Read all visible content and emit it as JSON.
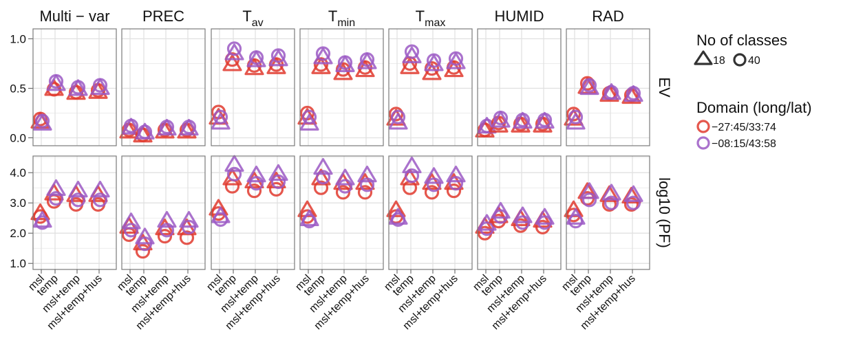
{
  "colors": {
    "series_red": "#e03a2e",
    "series_purple": "#9b59c4",
    "grid": "#e1e1e1",
    "panel_border": "#7a7a7a"
  },
  "legend": {
    "classes_title": "No of classes",
    "classes_items": [
      {
        "label": "18",
        "shape": "triangle"
      },
      {
        "label": "40",
        "shape": "circle"
      }
    ],
    "domain_title": "Domain (long/lat)",
    "domain_items": [
      {
        "label": "−27:45/33:74",
        "color": "#e03a2e"
      },
      {
        "label": "−08:15/43:58",
        "color": "#9b59c4"
      }
    ]
  },
  "chart_data": {
    "type": "scatter",
    "facet_columns": [
      "Multi − var",
      "PREC",
      "T",
      "T",
      "T",
      "HUMID",
      "RAD"
    ],
    "facet_column_subscripts": [
      "",
      "",
      "av",
      "min",
      "max",
      "",
      ""
    ],
    "facet_rows": [
      "EV",
      "log10 (PF)"
    ],
    "x_categories": [
      "msl",
      "temp",
      "msl+temp",
      "msl+temp+hus"
    ],
    "y_axes": {
      "EV": {
        "ylim": [
          -0.08,
          1.1
        ],
        "ticks": [
          0.0,
          0.5,
          1.0
        ],
        "tick_labels": [
          "0.0",
          "0.5",
          "1.0"
        ]
      },
      "log10 (PF)": {
        "ylim": [
          0.8,
          4.55
        ],
        "ticks": [
          1.0,
          2.0,
          3.0,
          4.0
        ],
        "tick_labels": [
          "1.0",
          "2.0",
          "3.0",
          "4.0"
        ]
      }
    },
    "series": [
      {
        "domain": "−27:45/33:74",
        "classes": "18",
        "shape": "triangle"
      },
      {
        "domain": "−27:45/33:74",
        "classes": "40",
        "shape": "circle"
      },
      {
        "domain": "−08:15/43:58",
        "classes": "18",
        "shape": "triangle"
      },
      {
        "domain": "−08:15/43:58",
        "classes": "40",
        "shape": "circle"
      }
    ],
    "values": {
      "EV": [
        [
          [
            0.16,
            0.19,
            0.14,
            0.17
          ],
          [
            0.49,
            0.49,
            0.54,
            0.57
          ],
          [
            0.45,
            0.46,
            0.49,
            0.51
          ],
          [
            0.46,
            0.48,
            0.5,
            0.53
          ]
        ],
        [
          [
            0.06,
            0.08,
            0.1,
            0.12
          ],
          [
            0.02,
            0.03,
            0.05,
            0.06
          ],
          [
            0.06,
            0.08,
            0.09,
            0.11
          ],
          [
            0.06,
            0.08,
            0.09,
            0.11
          ]
        ],
        [
          [
            0.2,
            0.26,
            0.15,
            0.21
          ],
          [
            0.74,
            0.79,
            0.85,
            0.9
          ],
          [
            0.7,
            0.73,
            0.78,
            0.81
          ],
          [
            0.71,
            0.74,
            0.79,
            0.83
          ]
        ],
        [
          [
            0.2,
            0.25,
            0.14,
            0.21
          ],
          [
            0.71,
            0.74,
            0.81,
            0.85
          ],
          [
            0.65,
            0.69,
            0.73,
            0.76
          ],
          [
            0.68,
            0.71,
            0.76,
            0.79
          ]
        ],
        [
          [
            0.19,
            0.24,
            0.15,
            0.21
          ],
          [
            0.71,
            0.75,
            0.82,
            0.87
          ],
          [
            0.65,
            0.7,
            0.74,
            0.78
          ],
          [
            0.68,
            0.71,
            0.76,
            0.8
          ]
        ],
        [
          [
            0.07,
            0.08,
            0.11,
            0.12
          ],
          [
            0.12,
            0.15,
            0.17,
            0.2
          ],
          [
            0.12,
            0.14,
            0.16,
            0.18
          ],
          [
            0.12,
            0.14,
            0.16,
            0.18
          ]
        ],
        [
          [
            0.19,
            0.24,
            0.15,
            0.21
          ],
          [
            0.51,
            0.55,
            0.5,
            0.53
          ],
          [
            0.43,
            0.45,
            0.45,
            0.46
          ],
          [
            0.41,
            0.43,
            0.43,
            0.45
          ]
        ]
      ],
      "log10 (PF)": [
        [
          [
            2.65,
            2.55,
            2.4,
            2.35
          ],
          [
            3.3,
            3.05,
            3.45,
            3.15
          ],
          [
            3.25,
            2.95,
            3.4,
            3.1
          ],
          [
            3.25,
            2.95,
            3.4,
            3.1
          ]
        ],
        [
          [
            2.2,
            1.95,
            2.35,
            2.1
          ],
          [
            1.65,
            1.4,
            1.85,
            1.65
          ],
          [
            2.15,
            1.9,
            2.4,
            2.1
          ],
          [
            2.15,
            1.85,
            2.4,
            2.2
          ]
        ],
        [
          [
            2.8,
            2.65,
            2.55,
            2.45
          ],
          [
            3.8,
            3.55,
            4.25,
            3.95
          ],
          [
            3.7,
            3.4,
            3.9,
            3.65
          ],
          [
            3.7,
            3.45,
            3.95,
            3.7
          ]
        ],
        [
          [
            2.75,
            2.55,
            2.45,
            2.4
          ],
          [
            3.8,
            3.5,
            4.15,
            3.85
          ],
          [
            3.65,
            3.35,
            3.8,
            3.55
          ],
          [
            3.65,
            3.35,
            3.9,
            3.6
          ]
        ],
        [
          [
            2.75,
            2.55,
            2.5,
            2.45
          ],
          [
            3.8,
            3.5,
            4.2,
            3.9
          ],
          [
            3.65,
            3.35,
            3.85,
            3.6
          ],
          [
            3.65,
            3.4,
            3.9,
            3.65
          ]
        ],
        [
          [
            2.2,
            2.0,
            2.3,
            2.15
          ],
          [
            2.55,
            2.4,
            2.7,
            2.55
          ],
          [
            2.45,
            2.25,
            2.55,
            2.35
          ],
          [
            2.4,
            2.2,
            2.5,
            2.35
          ]
        ],
        [
          [
            2.75,
            2.6,
            2.5,
            2.4
          ],
          [
            3.35,
            3.15,
            3.35,
            3.1
          ],
          [
            3.25,
            2.95,
            3.3,
            3.0
          ],
          [
            3.2,
            2.95,
            3.25,
            3.0
          ]
        ]
      ]
    },
    "grid": true
  }
}
